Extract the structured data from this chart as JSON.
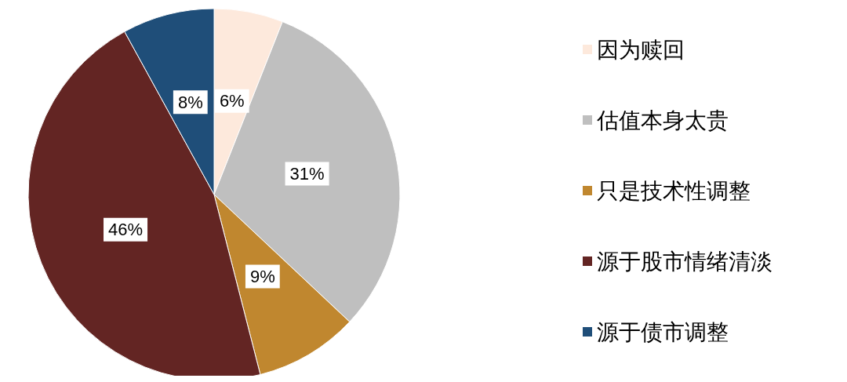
{
  "chart_data": {
    "type": "pie",
    "categories": [
      "因为赎回",
      "估值本身太贵",
      "只是技术性调整",
      "源于股市情绪清淡",
      "源于债市调整"
    ],
    "values": [
      6,
      31,
      9,
      46,
      8
    ],
    "colors": [
      "#fde9dc",
      "#bfbfbf",
      "#c0872f",
      "#632523",
      "#1f4e79"
    ],
    "value_labels": [
      "6%",
      "31%",
      "9%",
      "46%",
      "8%"
    ],
    "legend": "right"
  }
}
